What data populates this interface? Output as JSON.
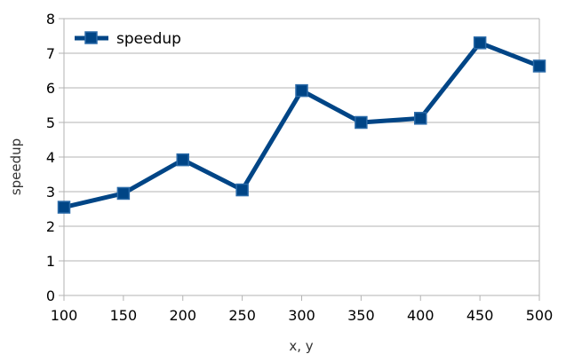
{
  "chart_data": {
    "type": "line",
    "xlabel": "x, y",
    "ylabel": "speedup",
    "x": [
      100,
      150,
      200,
      250,
      300,
      350,
      400,
      450,
      500
    ],
    "xticks": [
      100,
      150,
      200,
      250,
      300,
      350,
      400,
      450,
      500
    ],
    "yticks": [
      0,
      1,
      2,
      3,
      4,
      5,
      6,
      7,
      8
    ],
    "xlim": [
      100,
      500
    ],
    "ylim": [
      0,
      8
    ],
    "grid": "horizontal",
    "legend_position": "top-left",
    "series": [
      {
        "name": "speedup",
        "values": [
          2.55,
          2.95,
          3.92,
          3.05,
          5.92,
          5.0,
          5.12,
          7.3,
          6.63
        ],
        "color": "#004586",
        "marker": "square"
      }
    ]
  }
}
